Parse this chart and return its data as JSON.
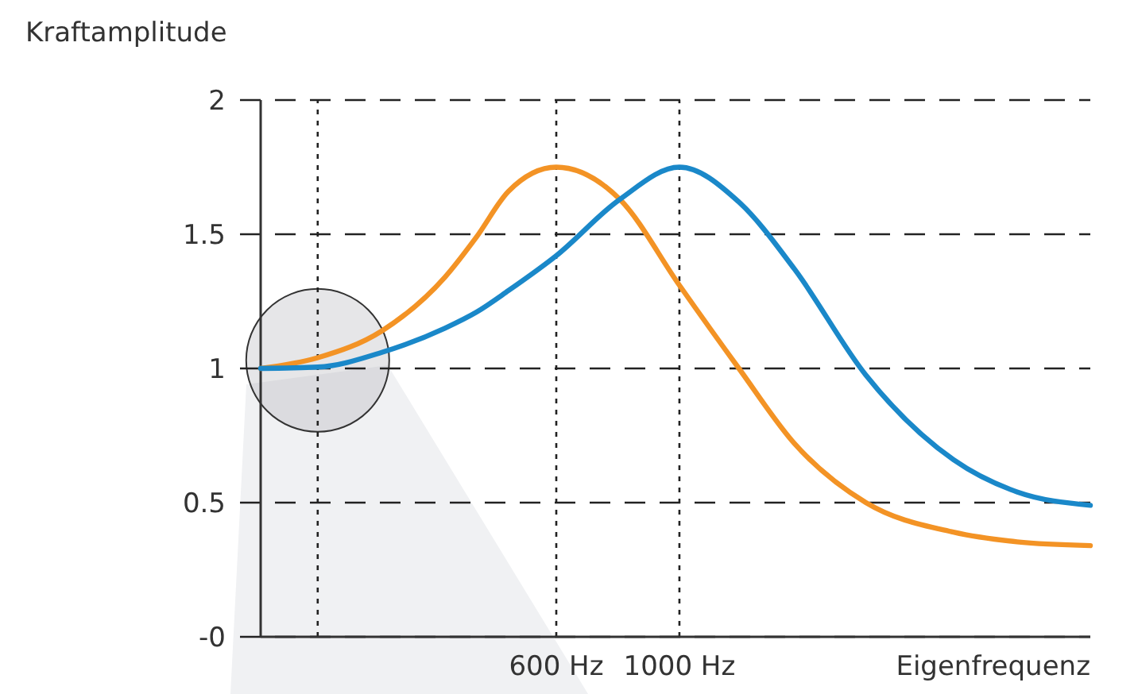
{
  "chart_data": {
    "type": "line",
    "xlabel": "Eigenfrequenz",
    "ylabel": "Kraftamplitude",
    "log": "x",
    "x": [
      176,
      223,
      291,
      378,
      431,
      492,
      600,
      781,
      1000,
      1280,
      1612,
      2168,
      3117,
      4057,
      5500
    ],
    "series": [
      {
        "color": "#f39325",
        "values": [
          1.0,
          1.04,
          1.14,
          1.34,
          1.49,
          1.66,
          1.75,
          1.63,
          1.31,
          1.0,
          0.72,
          0.5,
          0.39,
          0.354,
          0.34
        ]
      },
      {
        "color": "#1a88c9",
        "values": [
          1.0,
          1.005,
          1.06,
          1.15,
          1.21,
          1.29,
          1.42,
          1.63,
          1.75,
          1.62,
          1.37,
          0.975,
          0.66,
          0.54,
          0.49
        ]
      }
    ],
    "xlim": [
      176,
      5500
    ],
    "xticks": [
      {
        "value": 600,
        "label": "600 Hz"
      },
      {
        "value": 1000,
        "label": "1000 Hz"
      }
    ],
    "ylim": [
      0,
      2
    ],
    "yticks": [
      {
        "value": 0,
        "label": "-0"
      },
      0.5,
      1,
      1.5,
      2
    ],
    "ref_lines": [
      {
        "axis": "x",
        "value": 223,
        "line_style": "dotted"
      }
    ],
    "grid": true,
    "marker": "none",
    "line_style": "solid"
  }
}
